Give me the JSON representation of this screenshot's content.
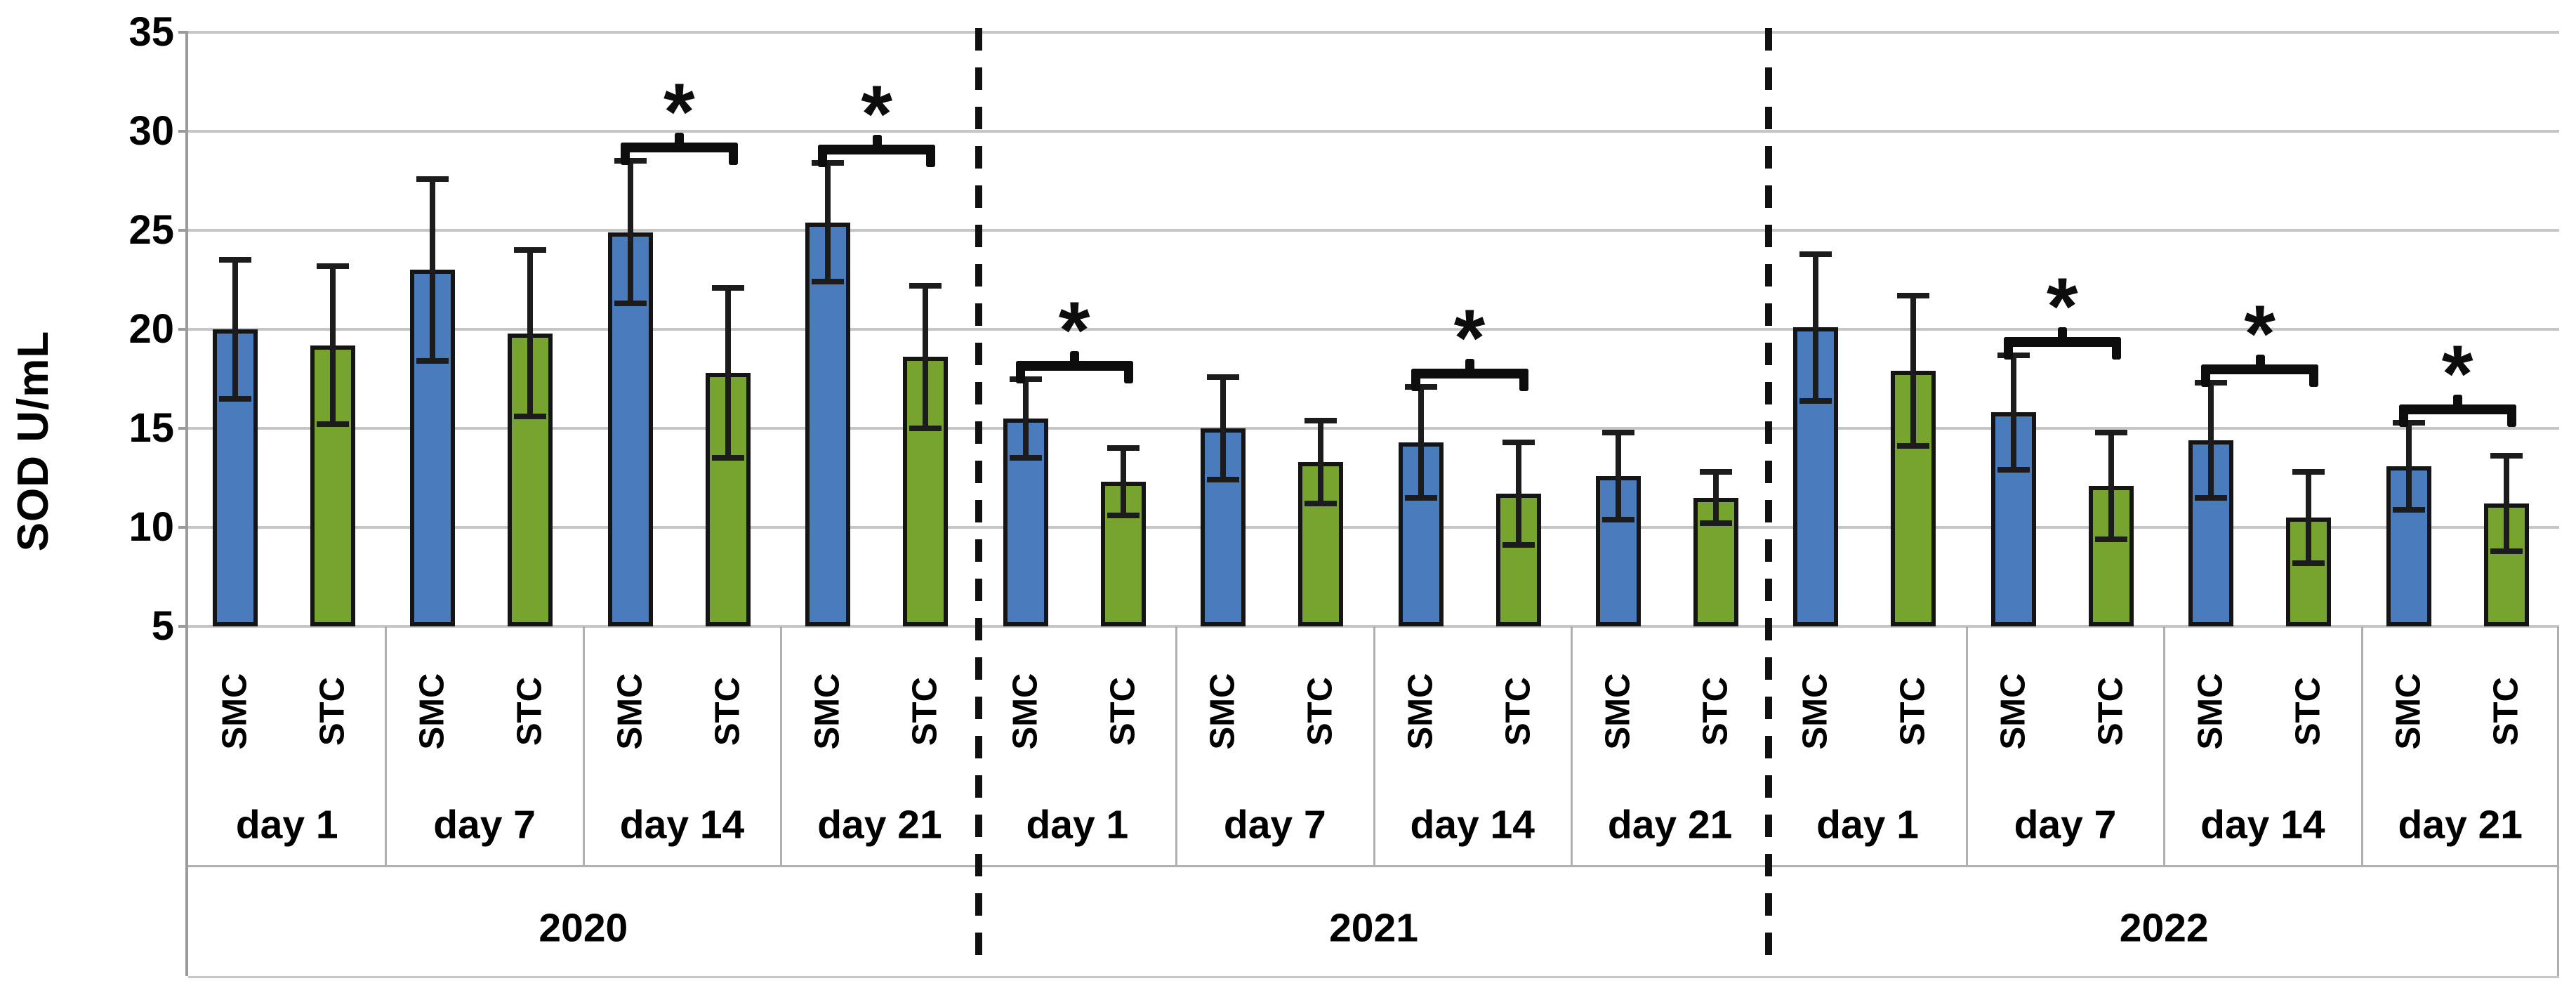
{
  "chart_data": {
    "type": "bar",
    "title": "",
    "xlabel": "",
    "ylabel": "SOD U/mL",
    "ylim": [
      5,
      35
    ],
    "yticks": [
      35,
      30,
      25,
      20,
      15,
      10,
      5
    ],
    "grid": true,
    "legend_position": "none",
    "bars_start_at": 5,
    "series_names": [
      "SMC",
      "STC"
    ],
    "significance_symbol": "*",
    "years": [
      {
        "label": "2020",
        "days": [
          {
            "label": "day 1",
            "smc": {
              "value": 20.0,
              "error": 3.5
            },
            "stc": {
              "value": 19.2,
              "error": 4.0
            },
            "significant": false
          },
          {
            "label": "day 7",
            "smc": {
              "value": 23.0,
              "error": 4.6
            },
            "stc": {
              "value": 19.8,
              "error": 4.2
            },
            "significant": false
          },
          {
            "label": "day 14",
            "smc": {
              "value": 24.9,
              "error": 3.6
            },
            "stc": {
              "value": 17.8,
              "error": 4.3
            },
            "significant": true
          },
          {
            "label": "day 21",
            "smc": {
              "value": 25.4,
              "error": 3.0
            },
            "stc": {
              "value": 18.6,
              "error": 3.6
            },
            "significant": true
          }
        ]
      },
      {
        "label": "2021",
        "days": [
          {
            "label": "day 1",
            "smc": {
              "value": 15.5,
              "error": 2.0
            },
            "stc": {
              "value": 12.3,
              "error": 1.7
            },
            "significant": true
          },
          {
            "label": "day 7",
            "smc": {
              "value": 15.0,
              "error": 2.6
            },
            "stc": {
              "value": 13.3,
              "error": 2.1
            },
            "significant": false
          },
          {
            "label": "day 14",
            "smc": {
              "value": 14.3,
              "error": 2.8
            },
            "stc": {
              "value": 11.7,
              "error": 2.6
            },
            "significant": true
          },
          {
            "label": "day 21",
            "smc": {
              "value": 12.6,
              "error": 2.2
            },
            "stc": {
              "value": 11.5,
              "error": 1.3
            },
            "significant": false
          }
        ]
      },
      {
        "label": "2022",
        "days": [
          {
            "label": "day 1",
            "smc": {
              "value": 20.1,
              "error": 3.7
            },
            "stc": {
              "value": 17.9,
              "error": 3.8
            },
            "significant": false
          },
          {
            "label": "day 7",
            "smc": {
              "value": 15.8,
              "error": 2.9
            },
            "stc": {
              "value": 12.1,
              "error": 2.7
            },
            "significant": true
          },
          {
            "label": "day 14",
            "smc": {
              "value": 14.4,
              "error": 2.9
            },
            "stc": {
              "value": 10.5,
              "error": 2.3
            },
            "significant": true
          },
          {
            "label": "day 21",
            "smc": {
              "value": 13.1,
              "error": 2.2
            },
            "stc": {
              "value": 11.2,
              "error": 2.4
            },
            "significant": true
          }
        ]
      }
    ],
    "colors": {
      "smc_fill": "#4a7bbd",
      "stc_fill": "#76a42f",
      "bar_border": "#151515",
      "gridline": "#c6c6c6",
      "axis_line": "#9a9a9a",
      "separator": "#b0b0b0",
      "dashed_separator": "#111111",
      "error_bar": "#1c1c1c",
      "text": "#000000",
      "background": "#ffffff"
    }
  }
}
